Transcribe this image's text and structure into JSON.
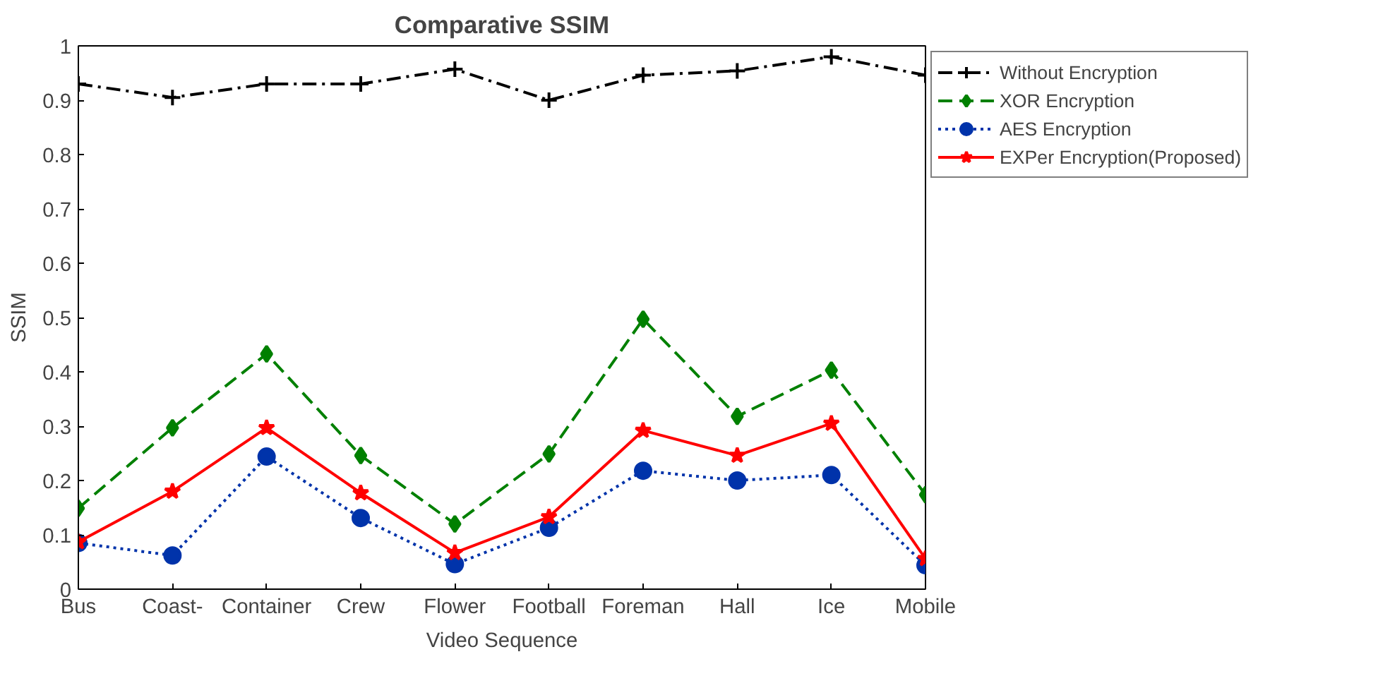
{
  "chart_data": {
    "type": "line",
    "title": "Comparative SSIM",
    "xlabel": "Video Sequence",
    "ylabel": "SSIM",
    "categories": [
      "Bus",
      "Coast-",
      "Container",
      "Crew",
      "Flower",
      "Football",
      "Foreman",
      "Hall",
      "Ice",
      "Mobile"
    ],
    "ylim": [
      0,
      1
    ],
    "yticks": [
      0,
      0.1,
      0.2,
      0.3,
      0.4,
      0.5,
      0.6,
      0.7,
      0.8,
      0.9,
      1
    ],
    "grid": false,
    "legend": "right",
    "series": [
      {
        "name": "Without Encryption",
        "color": "#000000",
        "marker": "cross",
        "line_style": "dashdot",
        "values": [
          0.93,
          0.905,
          0.93,
          0.93,
          0.957,
          0.9,
          0.946,
          0.954,
          0.98,
          0.946
        ]
      },
      {
        "name": "XOR Encryption",
        "color": "#008000",
        "marker": "diamond",
        "line_style": "dashed",
        "values": [
          0.149,
          0.297,
          0.433,
          0.246,
          0.12,
          0.249,
          0.497,
          0.318,
          0.403,
          0.174
        ]
      },
      {
        "name": "AES Encryption",
        "color": "#0033aa",
        "marker": "circle",
        "line_style": "dotted",
        "values": [
          0.085,
          0.062,
          0.244,
          0.131,
          0.046,
          0.113,
          0.218,
          0.2,
          0.21,
          0.044
        ]
      },
      {
        "name": "EXPer Encryption(Proposed)",
        "color": "#ff0000",
        "marker": "star",
        "line_style": "solid",
        "values": [
          0.087,
          0.18,
          0.297,
          0.177,
          0.067,
          0.133,
          0.292,
          0.246,
          0.305,
          0.056
        ]
      }
    ]
  }
}
